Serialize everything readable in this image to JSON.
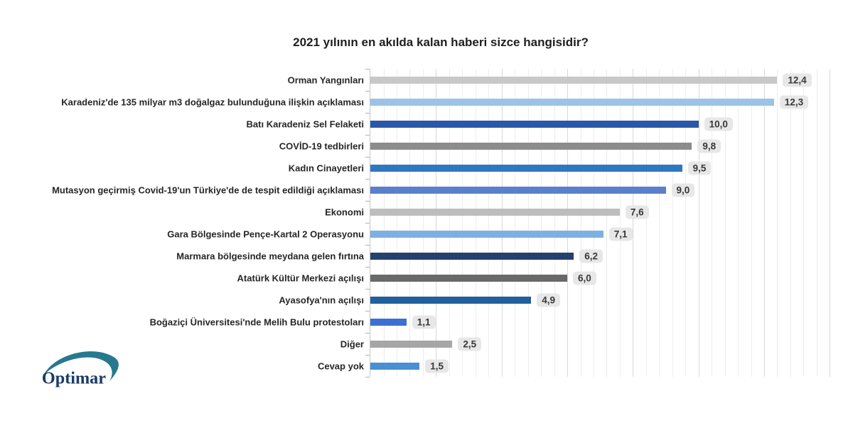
{
  "chart_data": {
    "type": "bar",
    "orientation": "horizontal",
    "title": "2021 yılının en akılda kalan haberi sizce hangisidir?",
    "categories": [
      "Orman Yangınları",
      "Karadeniz'de 135 milyar m3 doğalgaz bulunduğuna ilişkin açıklaması",
      "Batı Karadeniz Sel Felaketi",
      "COVİD-19 tedbirleri",
      "Kadın Cinayetleri",
      "Mutasyon geçirmiş Covid-19'un Türkiye'de de tespit edildiği açıklaması",
      "Ekonomi",
      "Gara Bölgesinde Pençe-Kartal 2 Operasyonu",
      "Marmara bölgesinde meydana gelen fırtına",
      "Atatürk Kültür Merkezi açılışı",
      "Ayasofya'nın açılışı",
      "Boğaziçi Üniversitesi'nde Melih Bulu protestoları",
      "Diğer",
      "Cevap yok"
    ],
    "values": [
      12.4,
      12.3,
      10.0,
      9.8,
      9.5,
      9.0,
      7.6,
      7.1,
      6.2,
      6.0,
      4.9,
      1.1,
      2.5,
      1.5
    ],
    "value_labels": [
      "12,4",
      "12,3",
      "10,0",
      "9,8",
      "9,5",
      "9,0",
      "7,6",
      "7,1",
      "6,2",
      "6,0",
      "4,9",
      "1,1",
      "2,5",
      "1,5"
    ],
    "bar_colors": [
      "#c8c8c8",
      "#9cc3e6",
      "#2b57a7",
      "#8c8c8c",
      "#2e78bf",
      "#5b80cb",
      "#bdbdbd",
      "#7db0e2",
      "#24406e",
      "#696969",
      "#20609c",
      "#3d6fd1",
      "#a6a6a6",
      "#4a8fd3"
    ],
    "xlim": [
      0,
      14.34
    ],
    "ylabel": "",
    "xlabel": "",
    "legend": "none",
    "grid": {
      "minor_step": 0.4,
      "major_step": 2,
      "minor_color": "#ededed",
      "major_color": "#d8d8d8"
    },
    "value_badge": {
      "bg": "#e7e7e7",
      "text_color": "#383838"
    }
  },
  "logo": {
    "text": "Optimar",
    "swoosh_color": "#26798e",
    "text_color": "#1a3a66"
  }
}
